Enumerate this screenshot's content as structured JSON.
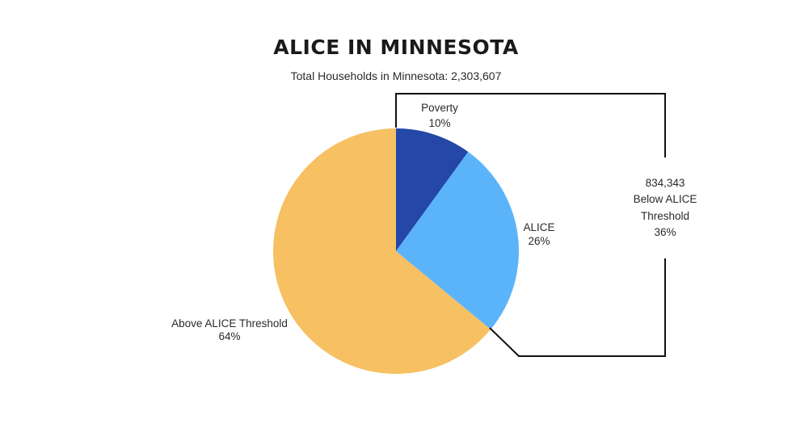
{
  "chart_data": {
    "type": "pie",
    "title": "ALICE IN MINNESOTA",
    "subtitle": "Total Households in Minnesota: 2,303,607",
    "slices": [
      {
        "name": "Poverty",
        "value": 10,
        "label": "10%",
        "color": "#2447a8"
      },
      {
        "name": "ALICE",
        "value": 26,
        "label": "26%",
        "color": "#5bb4fa"
      },
      {
        "name": "Above ALICE Threshold",
        "value": 64,
        "label": "64%",
        "color": "#f6c063"
      }
    ],
    "bracket_annotation": {
      "lines": [
        "834,343",
        "Below ALICE",
        "Threshold",
        "36%"
      ],
      "line_color": "#111111"
    }
  }
}
